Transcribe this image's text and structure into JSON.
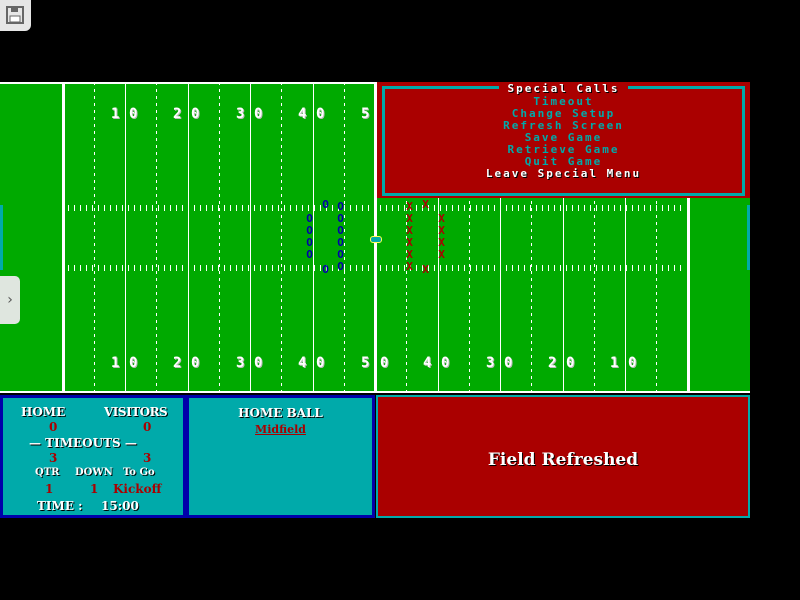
{
  "toolbar": {
    "save_icon": "floppy-disk-icon",
    "side_tab_icon": "chevron-right-icon",
    "side_tab_glyph": "›"
  },
  "colors": {
    "field": "#00aa00",
    "red": "#aa0000",
    "cyan": "#00aaaa",
    "blue": "#0000aa"
  },
  "field": {
    "top_numbers": [
      "1",
      "0",
      "2",
      "0",
      "3",
      "0",
      "4",
      "0",
      "5"
    ],
    "bottom_numbers": [
      "1",
      "0",
      "2",
      "0",
      "3",
      "0",
      "4",
      "0",
      "5",
      "0",
      "4",
      "0",
      "3",
      "0",
      "2",
      "0",
      "1",
      "0"
    ],
    "home_player_glyph": "O",
    "visitor_player_glyph": "X"
  },
  "menu": {
    "title": "Special Calls",
    "items": [
      "Timeout",
      "Change Setup",
      "Refresh Screen",
      "Save Game",
      "Retrieve Game",
      "Quit Game",
      "Leave Special Menu"
    ]
  },
  "scoreboard": {
    "home_label": "HOME",
    "visitors_label": "VISITORS",
    "home_score": "0",
    "visitors_score": "0",
    "timeouts_label": "— TIMEOUTS —",
    "home_timeouts": "3",
    "visitors_timeouts": "3",
    "qtr_label": "QTR",
    "down_label": "DOWN",
    "togo_label": "To Go",
    "qtr": "1",
    "down": "1",
    "togo": "Kickoff",
    "time_label": "TIME :",
    "time": "15:00"
  },
  "ball_info": {
    "possession": "HOME BALL",
    "location": "Midfield"
  },
  "message": "Field Refreshed"
}
